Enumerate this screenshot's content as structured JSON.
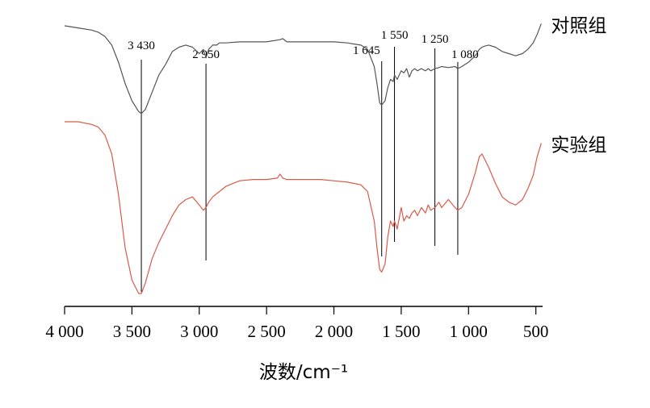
{
  "chart_data": {
    "type": "line",
    "xlabel": "波数/cm⁻¹",
    "ylabel": "",
    "xlim": [
      4000,
      450
    ],
    "xticks": [
      4000,
      3500,
      3000,
      2500,
      2000,
      1500,
      1000,
      500
    ],
    "xtick_labels": [
      "4 000",
      "3 500",
      "3 000",
      "2 500",
      "2 000",
      "1 500",
      "1 000",
      "500"
    ],
    "legend": "right",
    "series": [
      {
        "name": "对照组",
        "color": "#555555",
        "x": [
          4000,
          3900,
          3800,
          3750,
          3700,
          3650,
          3600,
          3550,
          3500,
          3450,
          3430,
          3400,
          3350,
          3300,
          3250,
          3200,
          3150,
          3100,
          3050,
          3000,
          2970,
          2950,
          2930,
          2900,
          2870,
          2850,
          2800,
          2700,
          2600,
          2500,
          2400,
          2380,
          2350,
          2300,
          2200,
          2100,
          2000,
          1900,
          1850,
          1800,
          1750,
          1700,
          1680,
          1660,
          1645,
          1620,
          1600,
          1580,
          1560,
          1550,
          1530,
          1500,
          1480,
          1460,
          1440,
          1420,
          1400,
          1380,
          1350,
          1320,
          1300,
          1280,
          1250,
          1220,
          1200,
          1150,
          1100,
          1080,
          1050,
          1000,
          950,
          920,
          900,
          880,
          850,
          800,
          750,
          700,
          650,
          600,
          560,
          520,
          490,
          460
        ],
        "y": [
          97,
          96,
          95,
          94,
          92,
          88,
          80,
          70,
          62,
          57,
          56,
          58,
          66,
          74,
          79,
          85,
          87,
          88,
          87,
          84,
          86,
          82,
          86,
          88,
          88,
          89,
          89,
          89.5,
          89.5,
          89.5,
          90.5,
          91,
          89.5,
          89.5,
          89.5,
          89.5,
          89.5,
          89,
          88.5,
          88,
          86,
          78,
          70,
          61,
          60,
          62,
          68,
          72,
          71,
          74,
          72,
          76,
          75,
          77,
          73,
          76,
          77,
          76,
          77,
          76,
          77,
          76,
          77,
          77.5,
          78,
          77.5,
          78,
          77,
          78,
          80,
          83,
          86,
          87,
          87.5,
          88,
          87,
          85,
          84,
          83,
          84,
          86,
          89,
          93,
          98
        ]
      },
      {
        "name": "实验组",
        "color": "#d85a4a",
        "x": [
          4000,
          3900,
          3800,
          3750,
          3700,
          3650,
          3600,
          3550,
          3500,
          3450,
          3430,
          3400,
          3350,
          3300,
          3250,
          3200,
          3150,
          3100,
          3050,
          3000,
          2970,
          2950,
          2930,
          2900,
          2850,
          2800,
          2700,
          2600,
          2500,
          2420,
          2400,
          2380,
          2350,
          2300,
          2200,
          2100,
          2000,
          1900,
          1850,
          1800,
          1750,
          1700,
          1680,
          1660,
          1645,
          1620,
          1600,
          1580,
          1560,
          1550,
          1530,
          1500,
          1480,
          1460,
          1440,
          1420,
          1400,
          1380,
          1350,
          1320,
          1300,
          1280,
          1250,
          1220,
          1200,
          1150,
          1100,
          1080,
          1050,
          1000,
          950,
          920,
          900,
          880,
          850,
          800,
          750,
          700,
          650,
          600,
          560,
          520,
          490,
          460
        ],
        "y": [
          97,
          97,
          96,
          95,
          92,
          85,
          70,
          50,
          38,
          33,
          33,
          37,
          46,
          52,
          57,
          62,
          66,
          68,
          69,
          66,
          64,
          65,
          67,
          69,
          71,
          73,
          75,
          75.5,
          75.5,
          76,
          77.5,
          76,
          75.5,
          75.5,
          75.5,
          75.5,
          75,
          74.5,
          74,
          73.5,
          71,
          60,
          50,
          42,
          41,
          44,
          54,
          60,
          58,
          60,
          57,
          65,
          60,
          62,
          61,
          63,
          64,
          62,
          65,
          63,
          66,
          64,
          65,
          67,
          65,
          68,
          65,
          64,
          65,
          70,
          78,
          84,
          85,
          83,
          80,
          74,
          69,
          67,
          66,
          68,
          72,
          77,
          84,
          89
        ]
      }
    ],
    "annotations": [
      {
        "label": "3 430",
        "x": 3430,
        "series": "对照组",
        "y": 56,
        "label_position": "above"
      },
      {
        "label": "2 950",
        "x": 2950,
        "series": "对照组",
        "y": 82,
        "label_position": "above"
      },
      {
        "label": "1 645",
        "x": 1645,
        "series": "对照组",
        "y": 60,
        "label_position": "above-left"
      },
      {
        "label": "1 550",
        "x": 1550,
        "series": "对照组",
        "y": 74,
        "label_position": "above"
      },
      {
        "label": "1 250",
        "x": 1250,
        "series": "对照组",
        "y": 77,
        "label_position": "above"
      },
      {
        "label": "1 080",
        "x": 1080,
        "series": "对照组",
        "y": 77,
        "label_position": "above-right"
      }
    ]
  }
}
